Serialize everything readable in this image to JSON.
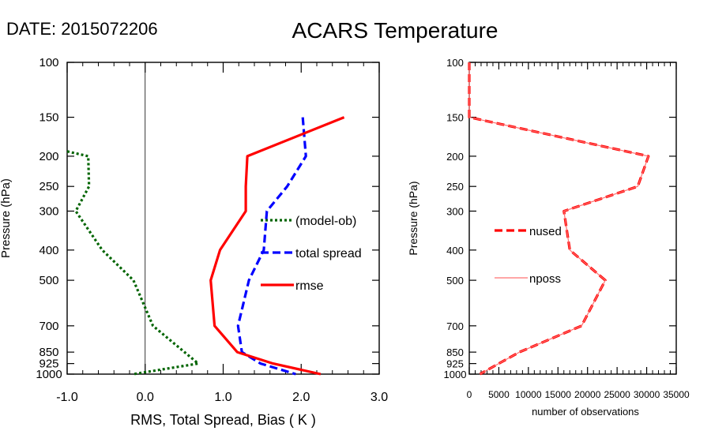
{
  "header": {
    "date_label": "DATE: 2015072206",
    "title": "ACARS Temperature"
  },
  "chart_data": [
    {
      "type": "line",
      "xlabel": "RMS, Total Spread, Bias ( K )",
      "ylabel": "Pressure (hPa)",
      "xlim": [
        -1.0,
        3.0
      ],
      "ylim": [
        1000,
        100
      ],
      "yscale": "log",
      "y_ticks": [
        100,
        150,
        200,
        250,
        300,
        400,
        500,
        700,
        850,
        925,
        1000
      ],
      "x_ticks": [
        "-1.0",
        "0.0",
        "1.0",
        "2.0",
        "3.0"
      ],
      "x_tick_values": [
        -1.0,
        0.0,
        1.0,
        2.0,
        3.0
      ],
      "zero_line": true,
      "grid": false,
      "legend_position": "right",
      "series": [
        {
          "name": "(model-ob)",
          "color": "#006400",
          "style": "dotted",
          "points": [
            [
              -1.0,
              193
            ],
            [
              -0.73,
              200
            ],
            [
              -0.72,
              250
            ],
            [
              -0.89,
              300
            ],
            [
              -0.55,
              400
            ],
            [
              -0.15,
              500
            ],
            [
              0.1,
              700
            ],
            [
              0.68,
              925
            ],
            [
              -0.15,
              1000
            ]
          ]
        },
        {
          "name": "total spread",
          "color": "#0000ff",
          "style": "dashed",
          "points": [
            [
              2.02,
              150
            ],
            [
              2.06,
              200
            ],
            [
              1.82,
              250
            ],
            [
              1.56,
              300
            ],
            [
              1.52,
              400
            ],
            [
              1.33,
              500
            ],
            [
              1.19,
              700
            ],
            [
              1.24,
              850
            ],
            [
              1.48,
              925
            ],
            [
              1.93,
              1000
            ]
          ]
        },
        {
          "name": "rmse",
          "color": "#ff0000",
          "style": "solid",
          "points": [
            [
              2.55,
              150
            ],
            [
              1.31,
              200
            ],
            [
              1.29,
              250
            ],
            [
              1.29,
              300
            ],
            [
              0.96,
              400
            ],
            [
              0.84,
              500
            ],
            [
              0.89,
              700
            ],
            [
              1.18,
              850
            ],
            [
              1.64,
              925
            ],
            [
              2.25,
              1000
            ]
          ]
        }
      ]
    },
    {
      "type": "line",
      "xlabel": "number of observations",
      "ylabel": "Pressure (hPa)",
      "xlim": [
        0,
        35000
      ],
      "ylim": [
        1000,
        100
      ],
      "yscale": "log",
      "y_ticks": [
        100,
        150,
        200,
        250,
        300,
        400,
        500,
        700,
        850,
        925,
        1000
      ],
      "x_ticks": [
        "0",
        "5000",
        "10000",
        "15000",
        "20000",
        "25000",
        "30000",
        "35000"
      ],
      "x_tick_values": [
        0,
        5000,
        10000,
        15000,
        20000,
        25000,
        30000,
        35000
      ],
      "grid": false,
      "legend_position": "left",
      "series": [
        {
          "name": "nused",
          "color": "#ff0000",
          "style": "dashed",
          "points": [
            [
              0,
              100
            ],
            [
              0,
              150
            ],
            [
              30300,
              200
            ],
            [
              28500,
              250
            ],
            [
              16000,
              300
            ],
            [
              17000,
              400
            ],
            [
              23000,
              500
            ],
            [
              19000,
              700
            ],
            [
              8500,
              850
            ],
            [
              5000,
              925
            ],
            [
              1800,
              1000
            ]
          ]
        },
        {
          "name": "nposs",
          "color": "#ff7070",
          "style": "solid",
          "points": [
            [
              0,
              100
            ],
            [
              0,
              150
            ],
            [
              30300,
              200
            ],
            [
              28500,
              250
            ],
            [
              16000,
              300
            ],
            [
              17000,
              400
            ],
            [
              23000,
              500
            ],
            [
              19000,
              700
            ],
            [
              8500,
              850
            ],
            [
              5000,
              925
            ],
            [
              1800,
              1000
            ]
          ]
        }
      ]
    }
  ]
}
